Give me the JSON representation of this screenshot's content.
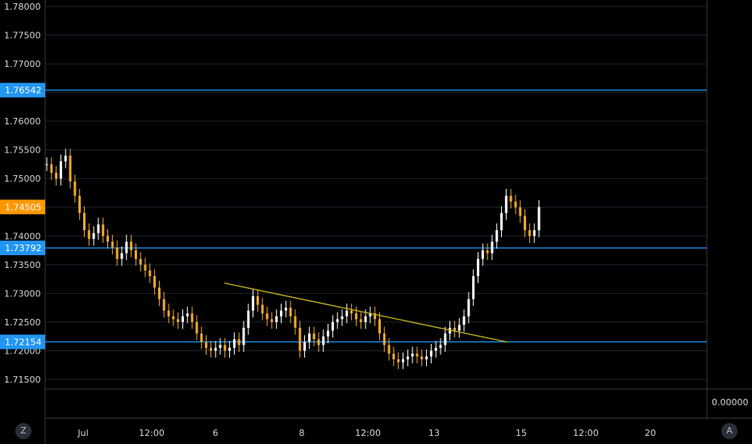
{
  "chart_data": {
    "type": "candlestick",
    "instrument_note": "",
    "y_ticks": [
      "1.78000",
      "1.77500",
      "1.77000",
      "1.76500",
      "1.76000",
      "1.75500",
      "1.75000",
      "1.74500",
      "1.74000",
      "1.73500",
      "1.73000",
      "1.72500",
      "1.72000",
      "1.71500"
    ],
    "ylim": [
      1.7145,
      1.7805
    ],
    "x_ticks": [
      "Jul",
      "12:00",
      "6",
      "8",
      "12:00",
      "13",
      "15",
      "12:00",
      "20"
    ],
    "horizontal_levels": [
      {
        "value": 1.76542,
        "label": "1.76542",
        "color": "#2196f3"
      },
      {
        "value": 1.73792,
        "label": "1.73792",
        "color": "#2196f3"
      },
      {
        "value": 1.72154,
        "label": "1.72154",
        "color": "#2196f3"
      }
    ],
    "last_price": {
      "value": 1.74505,
      "label": "1.74505",
      "color": "#ff9800"
    },
    "trendline": {
      "start": {
        "bar": 0.37,
        "price": 1.7318
      },
      "end": {
        "bar": 0.82,
        "price": 1.7215
      },
      "color": "#c8b41e"
    },
    "series": [
      {
        "values": [
          1.7525,
          1.751,
          1.75,
          1.753,
          1.754,
          1.7495,
          1.747,
          1.744,
          1.741,
          1.7395,
          1.7405,
          1.742,
          1.74,
          1.739,
          1.738,
          1.736,
          1.737,
          1.739,
          1.7375,
          1.736,
          1.735,
          1.734,
          1.733,
          1.731,
          1.729,
          1.727,
          1.726,
          1.7255,
          1.725,
          1.726,
          1.7265,
          1.725,
          1.723,
          1.7215,
          1.7205,
          1.72,
          1.7205,
          1.721,
          1.72,
          1.7205,
          1.722,
          1.721,
          1.724,
          1.727,
          1.7295,
          1.728,
          1.7265,
          1.7255,
          1.725,
          1.726,
          1.727,
          1.7275,
          1.726,
          1.724,
          1.72,
          1.7215,
          1.723,
          1.722,
          1.721,
          1.7225,
          1.7235,
          1.725,
          1.7255,
          1.726,
          1.727,
          1.7265,
          1.7255,
          1.725,
          1.726,
          1.7265,
          1.7255,
          1.723,
          1.721,
          1.7195,
          1.7185,
          1.718,
          1.7185,
          1.719,
          1.7195,
          1.719,
          1.7185,
          1.719,
          1.72,
          1.7205,
          1.721,
          1.723,
          1.724,
          1.7235,
          1.7245,
          1.726,
          1.729,
          1.733,
          1.736,
          1.7375,
          1.737,
          1.739,
          1.741,
          1.744,
          1.747,
          1.746,
          1.745,
          1.7435,
          1.741,
          1.74,
          1.741,
          1.74505
        ]
      }
    ]
  },
  "bottom_pane": {
    "value_label": "0.00000"
  },
  "controls": {
    "left_button": "Z",
    "right_button": "A"
  },
  "colors": {
    "candle_up": "#ffffff",
    "candle_down": "#f0a830",
    "grid": "#1e222d",
    "axis_line": "#363a45"
  }
}
